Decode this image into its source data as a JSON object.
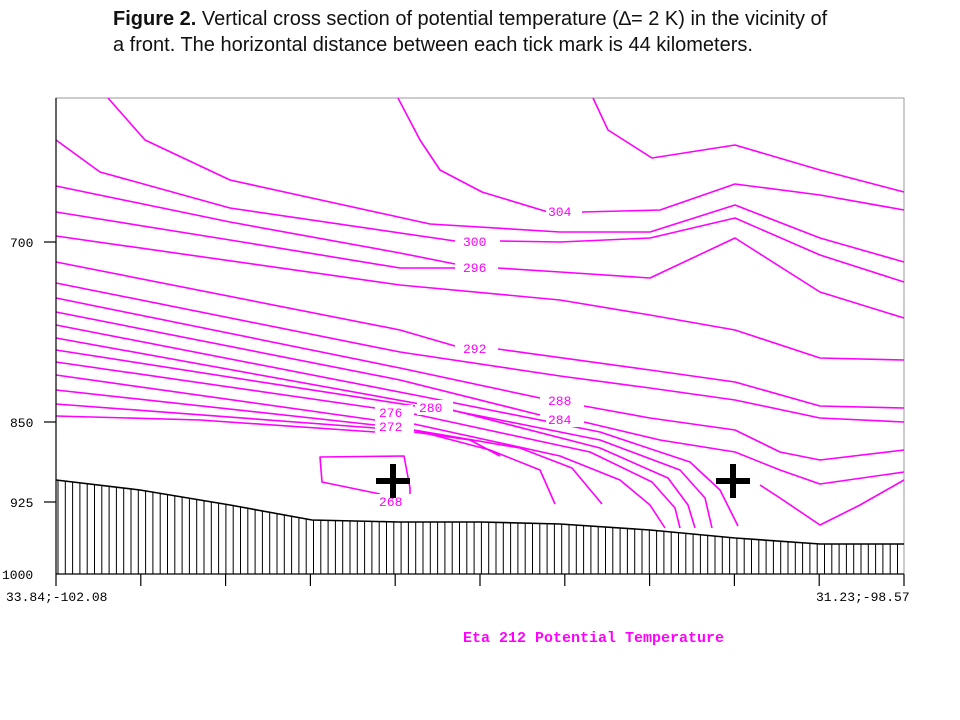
{
  "caption": {
    "lead": "Figure 2.",
    "text": " Vertical cross section of potential temperature (∆= 2 K) in the vicinity of a front. The horizontal distance between each tick mark is 44 kilometers."
  },
  "chart_data": {
    "type": "contour",
    "quantity": "Potential Temperature",
    "footer": "Eta 212 Potential Temperature",
    "contour_interval": "2 K",
    "colors": {
      "contour": "#ff00ff",
      "terrain": "#000000",
      "marker": "#000000"
    },
    "y_axis": {
      "ticks": [
        "700",
        "850",
        "925",
        "1000"
      ],
      "values": [
        700,
        850,
        925,
        1000
      ],
      "range": [
        600,
        1000
      ],
      "inverted": true
    },
    "x_axis": {
      "left_label": "33.84;-102.08",
      "right_label": "31.23;-98.57",
      "tick_count": 11,
      "tick_spacing_km": 44
    },
    "contour_labels": [
      "304",
      "300",
      "296",
      "292",
      "288",
      "284",
      "280",
      "276",
      "272",
      "268"
    ],
    "markers": [
      "plus",
      "plus"
    ]
  }
}
